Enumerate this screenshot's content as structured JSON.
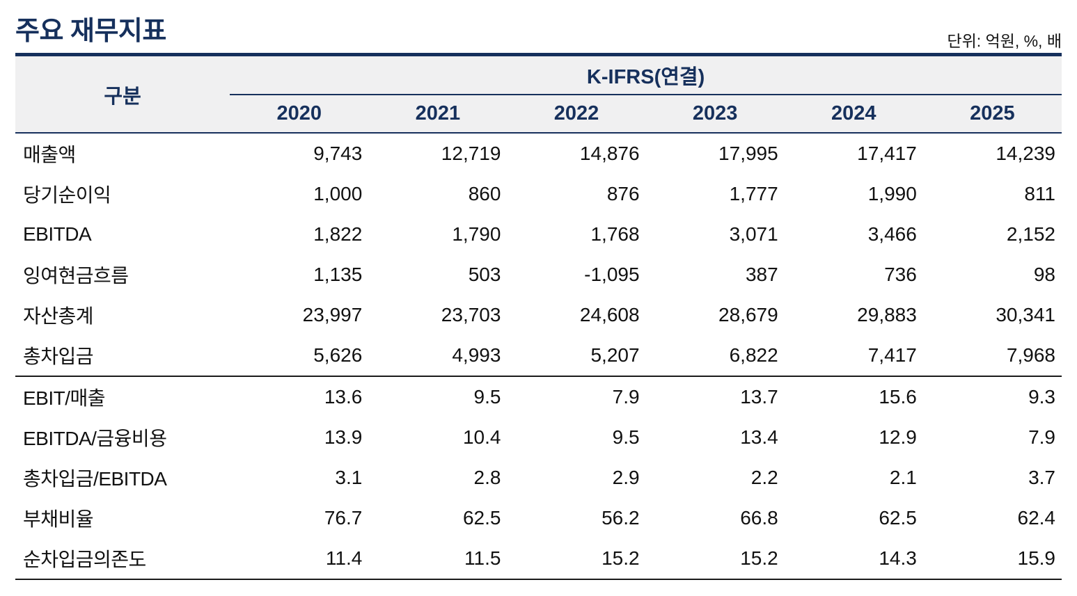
{
  "page": {
    "title": "주요 재무지표",
    "unit_note": "단위: 억원, %, 배"
  },
  "colors": {
    "navy": "#16305c",
    "header_bg": "#f0f0f1",
    "text": "#111111"
  },
  "table": {
    "group_label": "구분",
    "standard_label": "K-IFRS(연결)",
    "years": [
      "2020",
      "2021",
      "2022",
      "2023",
      "2024",
      "2025"
    ],
    "rows": [
      {
        "label": "매출액",
        "values": [
          "9,743",
          "12,719",
          "14,876",
          "17,995",
          "17,417",
          "14,239"
        ]
      },
      {
        "label": "당기순이익",
        "values": [
          "1,000",
          "860",
          "876",
          "1,777",
          "1,990",
          "811"
        ]
      },
      {
        "label": "EBITDA",
        "values": [
          "1,822",
          "1,790",
          "1,768",
          "3,071",
          "3,466",
          "2,152"
        ]
      },
      {
        "label": "잉여현금흐름",
        "values": [
          "1,135",
          "503",
          "-1,095",
          "387",
          "736",
          "98"
        ]
      },
      {
        "label": "자산총계",
        "values": [
          "23,997",
          "23,703",
          "24,608",
          "28,679",
          "29,883",
          "30,341"
        ]
      },
      {
        "label": "총차입금",
        "values": [
          "5,626",
          "4,993",
          "5,207",
          "6,822",
          "7,417",
          "7,968"
        ]
      },
      {
        "label": "EBIT/매출",
        "values": [
          "13.6",
          "9.5",
          "7.9",
          "13.7",
          "15.6",
          "9.3"
        ]
      },
      {
        "label": "EBITDA/금융비용",
        "values": [
          "13.9",
          "10.4",
          "9.5",
          "13.4",
          "12.9",
          "7.9"
        ]
      },
      {
        "label": "총차입금/EBITDA",
        "values": [
          "3.1",
          "2.8",
          "2.9",
          "2.2",
          "2.1",
          "3.7"
        ]
      },
      {
        "label": "부채비율",
        "values": [
          "76.7",
          "62.5",
          "56.2",
          "66.8",
          "62.5",
          "62.4"
        ]
      },
      {
        "label": "순차입금의존도",
        "values": [
          "11.4",
          "11.5",
          "15.2",
          "15.2",
          "14.3",
          "15.9"
        ]
      }
    ]
  }
}
